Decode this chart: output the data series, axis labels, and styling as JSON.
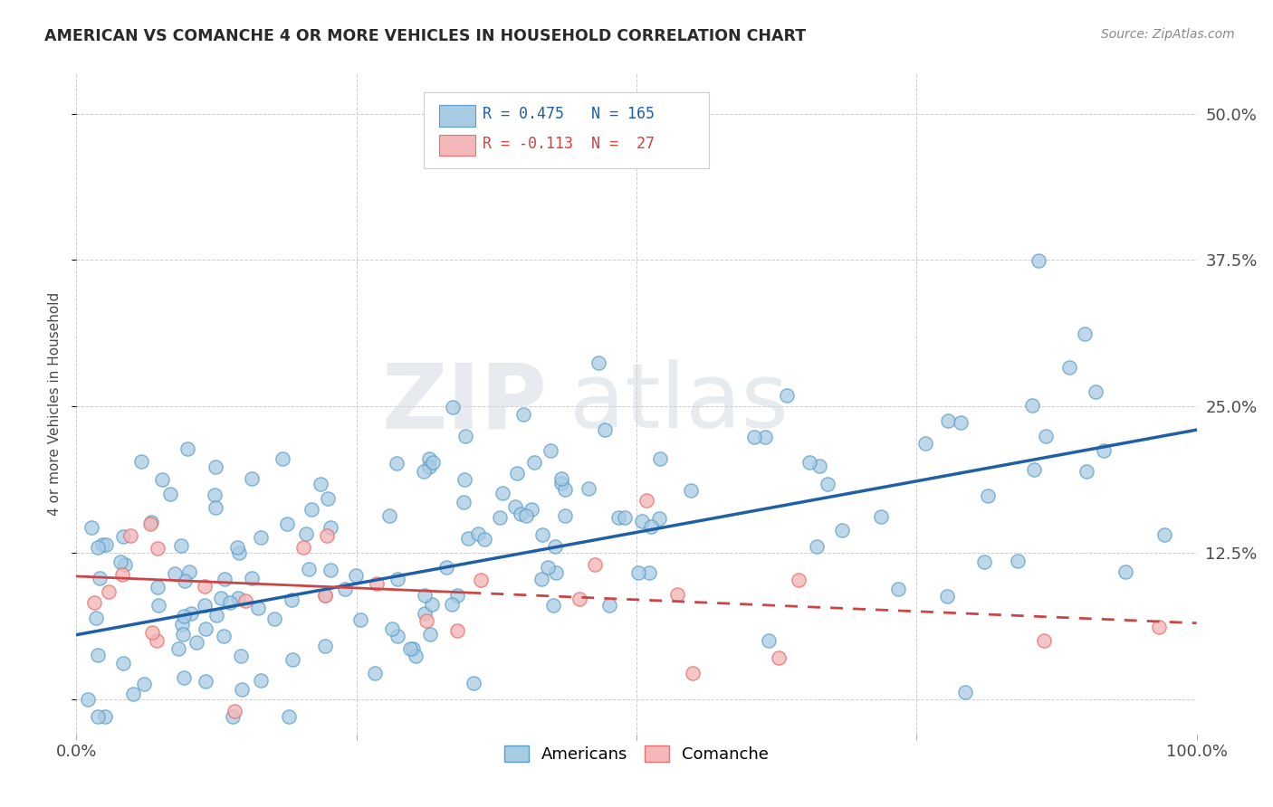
{
  "title": "AMERICAN VS COMANCHE 4 OR MORE VEHICLES IN HOUSEHOLD CORRELATION CHART",
  "source": "Source: ZipAtlas.com",
  "ylabel": "4 or more Vehicles in Household",
  "xlim": [
    0.0,
    1.0
  ],
  "ylim": [
    -0.03,
    0.535
  ],
  "x_ticks": [
    0.0,
    0.25,
    0.5,
    0.75,
    1.0
  ],
  "y_ticks": [
    0.0,
    0.125,
    0.25,
    0.375,
    0.5
  ],
  "y_tick_labels_right": [
    "",
    "12.5%",
    "25.0%",
    "37.5%",
    "50.0%"
  ],
  "legend_blue_label": "Americans",
  "legend_pink_label": "Comanche",
  "blue_R": 0.475,
  "blue_N": 165,
  "pink_R": -0.113,
  "pink_N": 27,
  "blue_color": "#a8cce4",
  "pink_color": "#f4b8b8",
  "blue_edge_color": "#5b9dc9",
  "pink_edge_color": "#e87070",
  "blue_line_color": "#1f5fa6",
  "pink_line_color": "#cc4444",
  "watermark_zip": "ZIP",
  "watermark_atlas": "atlas",
  "bg_color": "#ffffff"
}
